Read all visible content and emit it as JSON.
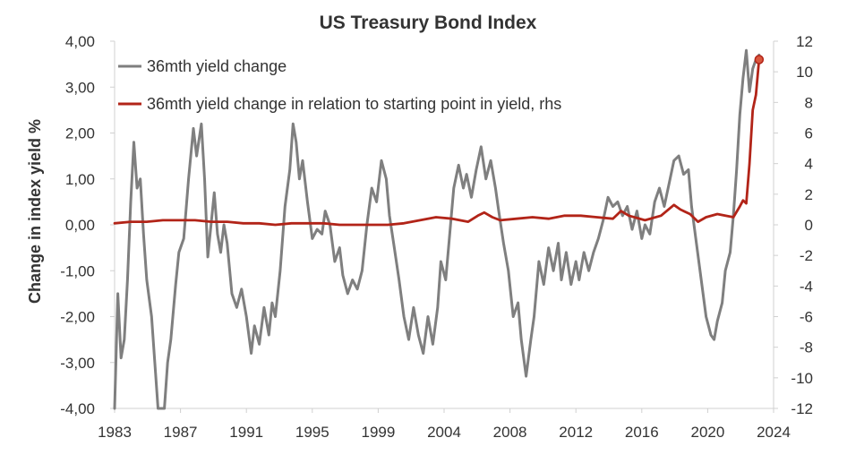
{
  "chart_data": {
    "type": "line",
    "title": "US Treasury Bond Index",
    "ylabel": "Change in index yield %",
    "xlabel": "",
    "x_ticks": [
      "1983",
      "1987",
      "1991",
      "1995",
      "1999",
      "2004",
      "2008",
      "2012",
      "2016",
      "2020",
      "2024"
    ],
    "y_left_ticks": [
      "4,00",
      "3,00",
      "2,00",
      "1,00",
      "0,00",
      "-1,00",
      "-2,00",
      "-3,00",
      "-4,00"
    ],
    "y_right_ticks": [
      "12",
      "10",
      "8",
      "6",
      "4",
      "2",
      "0",
      "-2",
      "-4",
      "-6",
      "-8",
      "-10",
      "-12"
    ],
    "ylim_left": [
      -4,
      4
    ],
    "ylim_right": [
      -12,
      12
    ],
    "xlim": [
      1983,
      2024
    ],
    "grid": false,
    "legend_position": "top-left",
    "series": [
      {
        "name": "36mth yield change",
        "axis": "left",
        "color": "#7f7f7f",
        "points": [
          [
            1983.0,
            -4.0
          ],
          [
            1983.2,
            -1.5
          ],
          [
            1983.4,
            -2.9
          ],
          [
            1983.6,
            -2.5
          ],
          [
            1983.8,
            -1.2
          ],
          [
            1984.0,
            0.5
          ],
          [
            1984.2,
            1.8
          ],
          [
            1984.4,
            0.8
          ],
          [
            1984.6,
            1.0
          ],
          [
            1984.8,
            -0.2
          ],
          [
            1985.0,
            -1.2
          ],
          [
            1985.3,
            -2.0
          ],
          [
            1985.5,
            -3.0
          ],
          [
            1985.7,
            -4.0
          ],
          [
            1986.1,
            -4.0
          ],
          [
            1986.3,
            -3.0
          ],
          [
            1986.5,
            -2.5
          ],
          [
            1986.8,
            -1.3
          ],
          [
            1987.0,
            -0.6
          ],
          [
            1987.3,
            -0.3
          ],
          [
            1987.6,
            1.0
          ],
          [
            1987.9,
            2.1
          ],
          [
            1988.1,
            1.5
          ],
          [
            1988.4,
            2.2
          ],
          [
            1988.6,
            1.0
          ],
          [
            1988.8,
            -0.7
          ],
          [
            1989.0,
            0.0
          ],
          [
            1989.2,
            0.7
          ],
          [
            1989.4,
            -0.2
          ],
          [
            1989.6,
            -0.6
          ],
          [
            1989.8,
            0.0
          ],
          [
            1990.0,
            -0.4
          ],
          [
            1990.3,
            -1.5
          ],
          [
            1990.6,
            -1.8
          ],
          [
            1990.9,
            -1.4
          ],
          [
            1991.2,
            -2.0
          ],
          [
            1991.5,
            -2.8
          ],
          [
            1991.7,
            -2.2
          ],
          [
            1992.0,
            -2.6
          ],
          [
            1992.3,
            -1.8
          ],
          [
            1992.6,
            -2.4
          ],
          [
            1992.8,
            -1.7
          ],
          [
            1993.0,
            -2.0
          ],
          [
            1993.3,
            -1.0
          ],
          [
            1993.6,
            0.4
          ],
          [
            1993.9,
            1.2
          ],
          [
            1994.1,
            2.2
          ],
          [
            1994.3,
            1.8
          ],
          [
            1994.5,
            1.0
          ],
          [
            1994.7,
            1.4
          ],
          [
            1995.0,
            0.5
          ],
          [
            1995.3,
            -0.3
          ],
          [
            1995.6,
            -0.1
          ],
          [
            1995.9,
            -0.2
          ],
          [
            1996.1,
            0.3
          ],
          [
            1996.4,
            0.0
          ],
          [
            1996.7,
            -0.8
          ],
          [
            1997.0,
            -0.5
          ],
          [
            1997.2,
            -1.1
          ],
          [
            1997.5,
            -1.5
          ],
          [
            1997.8,
            -1.2
          ],
          [
            1998.1,
            -1.4
          ],
          [
            1998.4,
            -1.0
          ],
          [
            1998.7,
            0.0
          ],
          [
            1999.0,
            0.8
          ],
          [
            1999.3,
            0.5
          ],
          [
            1999.6,
            1.4
          ],
          [
            1999.9,
            1.0
          ],
          [
            2000.1,
            0.2
          ],
          [
            2000.4,
            -0.5
          ],
          [
            2000.7,
            -1.2
          ],
          [
            2001.0,
            -2.0
          ],
          [
            2001.3,
            -2.5
          ],
          [
            2001.6,
            -1.8
          ],
          [
            2001.9,
            -2.4
          ],
          [
            2002.2,
            -2.8
          ],
          [
            2002.5,
            -2.0
          ],
          [
            2002.8,
            -2.6
          ],
          [
            2003.1,
            -1.8
          ],
          [
            2003.3,
            -0.8
          ],
          [
            2003.6,
            -1.2
          ],
          [
            2003.9,
            0.0
          ],
          [
            2004.1,
            0.8
          ],
          [
            2004.4,
            1.3
          ],
          [
            2004.7,
            0.8
          ],
          [
            2004.9,
            1.1
          ],
          [
            2005.2,
            0.6
          ],
          [
            2005.5,
            1.2
          ],
          [
            2005.8,
            1.7
          ],
          [
            2006.1,
            1.0
          ],
          [
            2006.4,
            1.4
          ],
          [
            2006.7,
            0.8
          ],
          [
            2006.9,
            0.3
          ],
          [
            2007.2,
            -0.4
          ],
          [
            2007.5,
            -1.0
          ],
          [
            2007.8,
            -2.0
          ],
          [
            2008.1,
            -1.7
          ],
          [
            2008.3,
            -2.5
          ],
          [
            2008.6,
            -3.3
          ],
          [
            2008.9,
            -2.5
          ],
          [
            2009.1,
            -2.0
          ],
          [
            2009.4,
            -0.8
          ],
          [
            2009.7,
            -1.3
          ],
          [
            2010.0,
            -0.5
          ],
          [
            2010.3,
            -1.0
          ],
          [
            2010.6,
            -0.4
          ],
          [
            2010.8,
            -1.2
          ],
          [
            2011.1,
            -0.6
          ],
          [
            2011.4,
            -1.3
          ],
          [
            2011.7,
            -0.8
          ],
          [
            2011.9,
            -1.2
          ],
          [
            2012.2,
            -0.6
          ],
          [
            2012.5,
            -1.0
          ],
          [
            2012.8,
            -0.6
          ],
          [
            2013.1,
            -0.3
          ],
          [
            2013.4,
            0.1
          ],
          [
            2013.7,
            0.6
          ],
          [
            2014.0,
            0.4
          ],
          [
            2014.3,
            0.5
          ],
          [
            2014.6,
            0.2
          ],
          [
            2014.9,
            0.4
          ],
          [
            2015.2,
            -0.1
          ],
          [
            2015.5,
            0.3
          ],
          [
            2015.8,
            -0.3
          ],
          [
            2016.0,
            0.0
          ],
          [
            2016.3,
            -0.2
          ],
          [
            2016.6,
            0.5
          ],
          [
            2016.9,
            0.8
          ],
          [
            2017.2,
            0.4
          ],
          [
            2017.5,
            0.9
          ],
          [
            2017.8,
            1.4
          ],
          [
            2018.1,
            1.5
          ],
          [
            2018.4,
            1.1
          ],
          [
            2018.7,
            1.2
          ],
          [
            2018.9,
            0.4
          ],
          [
            2019.2,
            -0.4
          ],
          [
            2019.5,
            -1.2
          ],
          [
            2019.8,
            -2.0
          ],
          [
            2020.1,
            -2.4
          ],
          [
            2020.3,
            -2.5
          ],
          [
            2020.5,
            -2.1
          ],
          [
            2020.8,
            -1.7
          ],
          [
            2021.0,
            -1.0
          ],
          [
            2021.3,
            -0.6
          ],
          [
            2021.5,
            0.2
          ],
          [
            2021.7,
            1.2
          ],
          [
            2021.9,
            2.4
          ],
          [
            2022.1,
            3.2
          ],
          [
            2022.3,
            3.8
          ],
          [
            2022.5,
            2.9
          ],
          [
            2022.7,
            3.4
          ],
          [
            2022.9,
            3.6
          ],
          [
            2023.1,
            3.7
          ]
        ]
      },
      {
        "name": "36mth yield change in relation to starting point in yield, rhs",
        "axis": "right",
        "color": "#b22418",
        "points": [
          [
            1983.0,
            0.1
          ],
          [
            1984.0,
            0.2
          ],
          [
            1985.0,
            0.2
          ],
          [
            1986.0,
            0.3
          ],
          [
            1987.0,
            0.3
          ],
          [
            1988.0,
            0.3
          ],
          [
            1989.0,
            0.2
          ],
          [
            1990.0,
            0.2
          ],
          [
            1991.0,
            0.1
          ],
          [
            1992.0,
            0.1
          ],
          [
            1993.0,
            0.0
          ],
          [
            1994.0,
            0.1
          ],
          [
            1995.0,
            0.1
          ],
          [
            1996.0,
            0.1
          ],
          [
            1997.0,
            0.0
          ],
          [
            1998.0,
            0.0
          ],
          [
            1999.0,
            0.0
          ],
          [
            2000.0,
            0.0
          ],
          [
            2001.0,
            0.1
          ],
          [
            2002.0,
            0.3
          ],
          [
            2003.0,
            0.5
          ],
          [
            2004.0,
            0.4
          ],
          [
            2005.0,
            0.2
          ],
          [
            2005.6,
            0.6
          ],
          [
            2006.0,
            0.8
          ],
          [
            2006.5,
            0.5
          ],
          [
            2007.0,
            0.3
          ],
          [
            2008.0,
            0.4
          ],
          [
            2009.0,
            0.5
          ],
          [
            2010.0,
            0.4
          ],
          [
            2011.0,
            0.6
          ],
          [
            2012.0,
            0.6
          ],
          [
            2013.0,
            0.5
          ],
          [
            2014.0,
            0.4
          ],
          [
            2014.5,
            0.9
          ],
          [
            2015.0,
            0.6
          ],
          [
            2016.0,
            0.3
          ],
          [
            2017.0,
            0.6
          ],
          [
            2017.8,
            1.3
          ],
          [
            2018.2,
            1.0
          ],
          [
            2018.8,
            0.7
          ],
          [
            2019.3,
            0.2
          ],
          [
            2019.8,
            0.5
          ],
          [
            2020.5,
            0.7
          ],
          [
            2021.0,
            0.6
          ],
          [
            2021.5,
            0.5
          ],
          [
            2021.9,
            1.2
          ],
          [
            2022.1,
            1.6
          ],
          [
            2022.3,
            1.4
          ],
          [
            2022.5,
            4.0
          ],
          [
            2022.7,
            7.5
          ],
          [
            2022.9,
            8.5
          ],
          [
            2023.1,
            10.8
          ]
        ]
      }
    ],
    "annotations": [
      {
        "type": "marker",
        "series": 1,
        "x": 2023.1,
        "y": 10.8
      }
    ]
  }
}
